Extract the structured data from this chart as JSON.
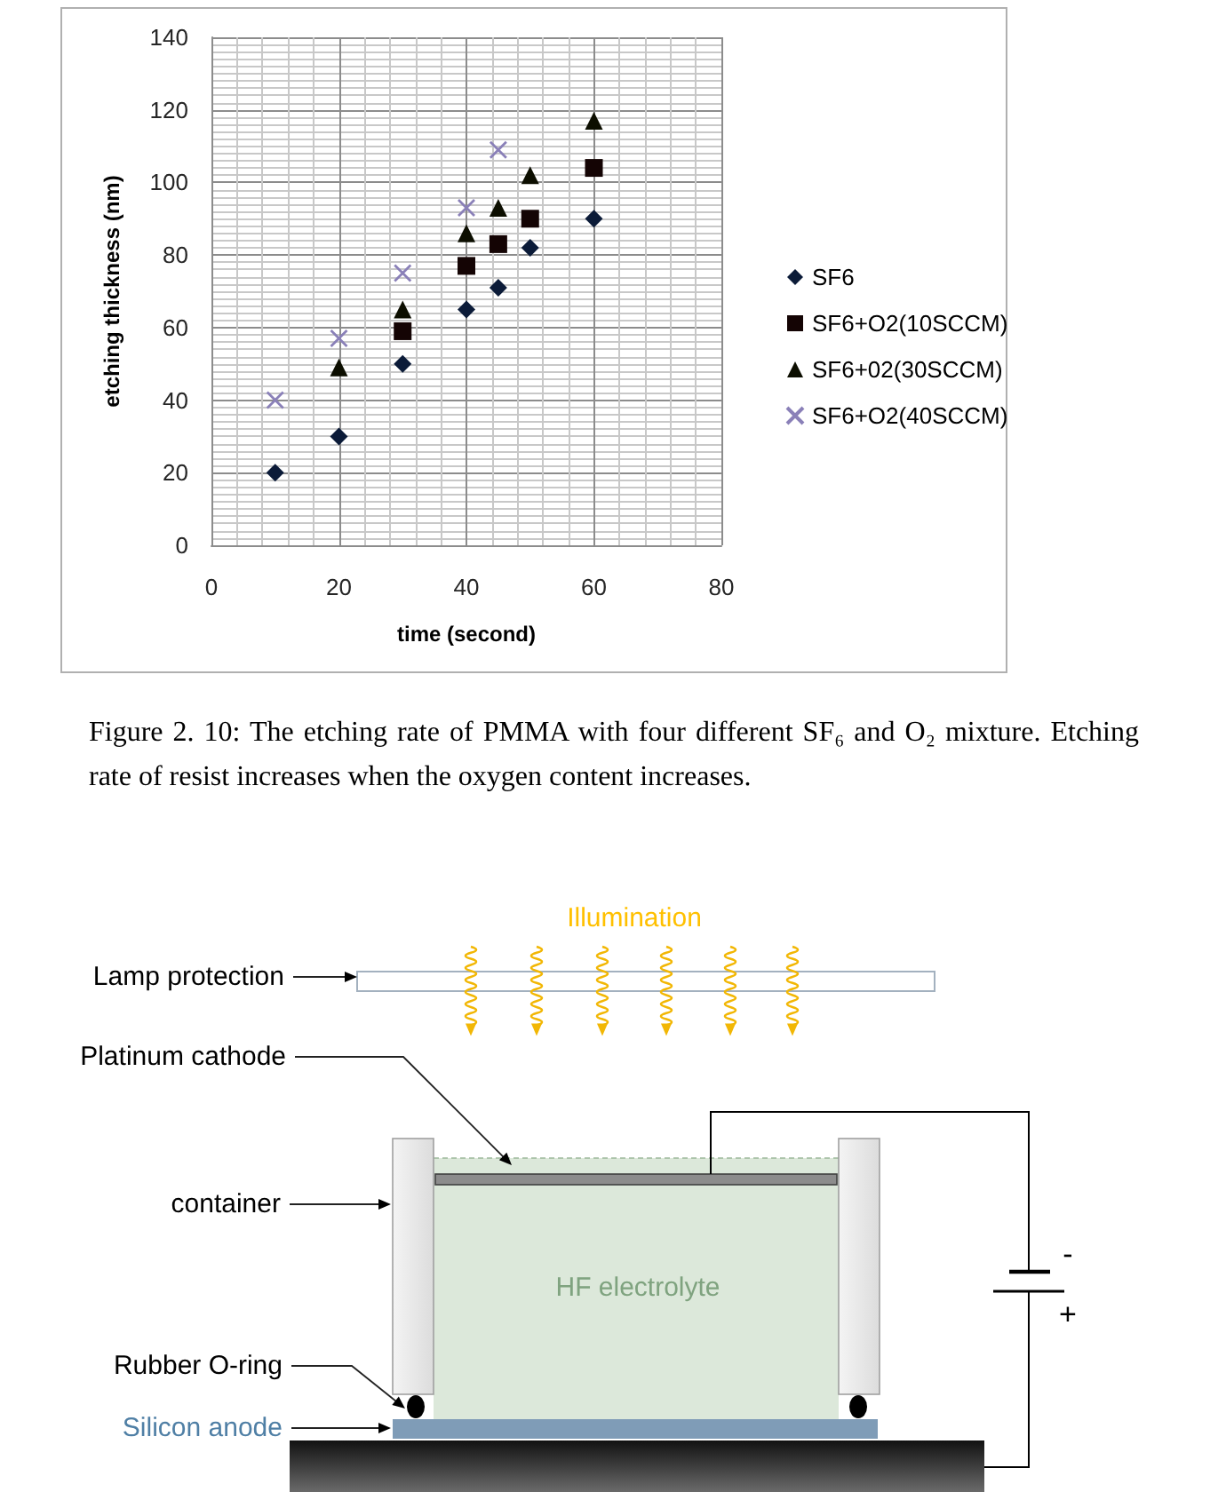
{
  "chart_data": {
    "type": "scatter",
    "xlabel": "time (second)",
    "ylabel": "etching thickness (nm)",
    "xlim": [
      0,
      80
    ],
    "xticks": [
      0,
      20,
      40,
      60,
      80
    ],
    "ylim": [
      0,
      140
    ],
    "yticks": [
      0,
      20,
      40,
      60,
      80,
      100,
      120,
      140
    ],
    "grid": true,
    "legend": "right",
    "series": [
      {
        "name": "SF6",
        "color": "#0b1b38",
        "marker": "diamond",
        "x": [
          10,
          20,
          30,
          40,
          45,
          50,
          60
        ],
        "values": [
          20,
          30,
          50,
          65,
          71,
          82,
          90
        ]
      },
      {
        "name": "SF6+O2(10SCCM)",
        "color": "#140404",
        "marker": "square",
        "x": [
          30,
          40,
          45,
          50,
          60
        ],
        "values": [
          59,
          77,
          83,
          90,
          104
        ]
      },
      {
        "name": "SF6+02(30SCCM)",
        "color": "#0c0e00",
        "marker": "triangle",
        "x": [
          20,
          30,
          40,
          45,
          50,
          60
        ],
        "values": [
          49,
          65,
          86,
          93,
          102,
          117
        ]
      },
      {
        "name": "SF6+O2(40SCCM)",
        "color": "#8a80b8",
        "marker": "cross",
        "x": [
          10,
          20,
          30,
          40,
          45
        ],
        "values": [
          40,
          57,
          75,
          93,
          109
        ]
      }
    ],
    "annotations": [
      "Figure 2. 10: The etching rate of PMMA with four different SF₆ and O₂ mixture. Etching rate of resist increases when the oxygen content increases.",
      "Illumination",
      "Lamp protection",
      "Platinum cathode",
      "container",
      "HF electrolyte",
      "Rubber O-ring",
      "Silicon anode",
      "-",
      "+"
    ]
  }
}
